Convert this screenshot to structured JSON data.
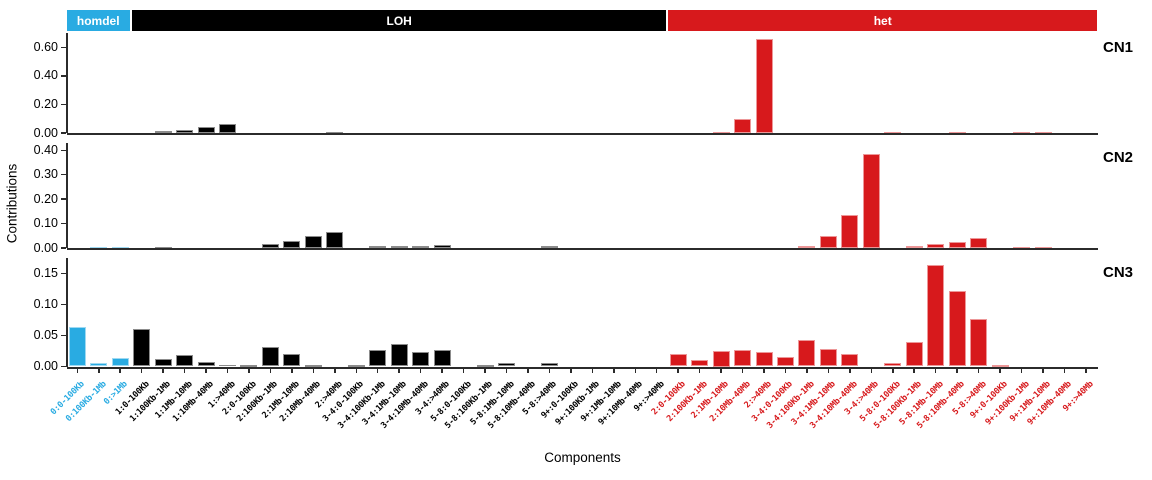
{
  "figure": {
    "ylabel": "Contributions",
    "xlabel": "Components",
    "group_header": [
      {
        "label": "homdel",
        "color": "#29abe2"
      },
      {
        "label": "LOH",
        "color": "#000000"
      },
      {
        "label": "het",
        "color": "#d7191c"
      }
    ]
  },
  "chart_data": {
    "type": "bar",
    "orientation": "vertical",
    "grid": false,
    "legend_position": "top-band",
    "group_colors": {
      "homdel": "#29abe2",
      "LOH": "#000000",
      "het": "#d7191c"
    },
    "categories": [
      {
        "label": "0:0-100Kb",
        "group": "homdel"
      },
      {
        "label": "0:100Kb-1Mb",
        "group": "homdel"
      },
      {
        "label": "0:>1Mb",
        "group": "homdel"
      },
      {
        "label": "1:0-100Kb",
        "group": "LOH"
      },
      {
        "label": "1:100Kb-1Mb",
        "group": "LOH"
      },
      {
        "label": "1:1Mb-10Mb",
        "group": "LOH"
      },
      {
        "label": "1:10Mb-40Mb",
        "group": "LOH"
      },
      {
        "label": "1:>40Mb",
        "group": "LOH"
      },
      {
        "label": "2:0-100Kb",
        "group": "LOH"
      },
      {
        "label": "2:100Kb-1Mb",
        "group": "LOH"
      },
      {
        "label": "2:1Mb-10Mb",
        "group": "LOH"
      },
      {
        "label": "2:10Mb-40Mb",
        "group": "LOH"
      },
      {
        "label": "2:>40Mb",
        "group": "LOH"
      },
      {
        "label": "3-4:0-100Kb",
        "group": "LOH"
      },
      {
        "label": "3-4:100Kb-1Mb",
        "group": "LOH"
      },
      {
        "label": "3-4:1Mb-10Mb",
        "group": "LOH"
      },
      {
        "label": "3-4:10Mb-40Mb",
        "group": "LOH"
      },
      {
        "label": "3-4:>40Mb",
        "group": "LOH"
      },
      {
        "label": "5-8:0-100Kb",
        "group": "LOH"
      },
      {
        "label": "5-8:100Kb-1Mb",
        "group": "LOH"
      },
      {
        "label": "5-8:1Mb-10Mb",
        "group": "LOH"
      },
      {
        "label": "5-8:10Mb-40Mb",
        "group": "LOH"
      },
      {
        "label": "5-8:>40Mb",
        "group": "LOH"
      },
      {
        "label": "9+:0-100Kb",
        "group": "LOH"
      },
      {
        "label": "9+:100Kb-1Mb",
        "group": "LOH"
      },
      {
        "label": "9+:1Mb-10Mb",
        "group": "LOH"
      },
      {
        "label": "9+:10Mb-40Mb",
        "group": "LOH"
      },
      {
        "label": "9+:>40Mb",
        "group": "LOH"
      },
      {
        "label": "2:0-100Kb",
        "group": "het"
      },
      {
        "label": "2:100Kb-1Mb",
        "group": "het"
      },
      {
        "label": "2:1Mb-10Mb",
        "group": "het"
      },
      {
        "label": "2:10Mb-40Mb",
        "group": "het"
      },
      {
        "label": "2:>40Mb",
        "group": "het"
      },
      {
        "label": "3-4:0-100Kb",
        "group": "het"
      },
      {
        "label": "3-4:100Kb-1Mb",
        "group": "het"
      },
      {
        "label": "3-4:1Mb-10Mb",
        "group": "het"
      },
      {
        "label": "3-4:10Mb-40Mb",
        "group": "het"
      },
      {
        "label": "3-4:>40Mb",
        "group": "het"
      },
      {
        "label": "5-8:0-100Kb",
        "group": "het"
      },
      {
        "label": "5-8:100Kb-1Mb",
        "group": "het"
      },
      {
        "label": "5-8:1Mb-10Mb",
        "group": "het"
      },
      {
        "label": "5-8:10Mb-40Mb",
        "group": "het"
      },
      {
        "label": "5-8:>40Mb",
        "group": "het"
      },
      {
        "label": "9+:0-100Kb",
        "group": "het"
      },
      {
        "label": "9+:100Kb-1Mb",
        "group": "het"
      },
      {
        "label": "9+:1Mb-10Mb",
        "group": "het"
      },
      {
        "label": "9+:10Mb-40Mb",
        "group": "het"
      },
      {
        "label": "9+:>40Mb",
        "group": "het"
      }
    ],
    "panels": [
      {
        "name": "CN1",
        "ymax": 0.7,
        "yticks": [
          0.6,
          0.4,
          0.2,
          0.0
        ],
        "ytick_labels": [
          "0.60",
          "0.40",
          "0.20",
          "0.00"
        ],
        "values": [
          0,
          0,
          0,
          0,
          0.012,
          0.02,
          0.045,
          0.06,
          0,
          0,
          0,
          0,
          0.005,
          0,
          0,
          0,
          0,
          0,
          0,
          0,
          0,
          0,
          0,
          0,
          0,
          0,
          0,
          0,
          0,
          0,
          0.008,
          0.1,
          0.66,
          0,
          0,
          0,
          0,
          0,
          0.003,
          0,
          0,
          0.003,
          0,
          0,
          0.003,
          0.003,
          0,
          0
        ]
      },
      {
        "name": "CN2",
        "ymax": 0.43,
        "yticks": [
          0.4,
          0.3,
          0.2,
          0.1,
          0.0
        ],
        "ytick_labels": [
          "0.40",
          "0.30",
          "0.20",
          "0.10",
          "0.00"
        ],
        "values": [
          0,
          0.004,
          0.002,
          0,
          0.003,
          0,
          0,
          0,
          0,
          0.015,
          0.027,
          0.05,
          0.064,
          0,
          0.01,
          0.008,
          0.008,
          0.012,
          0,
          0,
          0,
          0,
          0.008,
          0,
          0,
          0,
          0,
          0,
          0,
          0,
          0,
          0,
          0,
          0,
          0.007,
          0.05,
          0.135,
          0.385,
          0,
          0.008,
          0.018,
          0.023,
          0.042,
          0,
          0.003,
          0.003,
          0,
          0
        ]
      },
      {
        "name": "CN3",
        "ymax": 0.175,
        "yticks": [
          0.15,
          0.1,
          0.05,
          0.0
        ],
        "ytick_labels": [
          "0.15",
          "0.10",
          "0.05",
          "0.00"
        ],
        "values": [
          0.063,
          0.005,
          0.013,
          0.06,
          0.012,
          0.018,
          0.008,
          0.003,
          0.002,
          0.032,
          0.02,
          0.002,
          0,
          0.002,
          0.026,
          0.036,
          0.024,
          0.027,
          0,
          0.002,
          0.006,
          0,
          0.006,
          0,
          0,
          0,
          0,
          0,
          0.02,
          0.011,
          0.025,
          0.026,
          0.023,
          0.016,
          0.042,
          0.028,
          0.02,
          0,
          0.005,
          0.04,
          0.163,
          0.122,
          0.077,
          0.002,
          0,
          0,
          0,
          0
        ]
      }
    ]
  }
}
